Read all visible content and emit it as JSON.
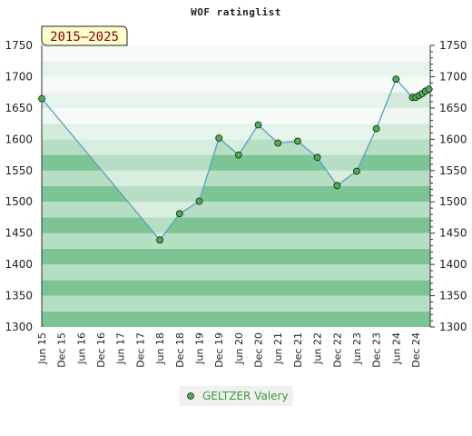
{
  "chart_data": {
    "type": "area",
    "title": "WOF ratinglist",
    "period_label": "2015–2025",
    "x_ticks": [
      "Jun 15",
      "Dec 15",
      "Jun 16",
      "Dec 16",
      "Jun 17",
      "Dec 17",
      "Jun 18",
      "Dec 18",
      "Jun 19",
      "Dec 19",
      "Jun 20",
      "Dec 20",
      "Jun 21",
      "Dec 21",
      "Jun 22",
      "Dec 22",
      "Jun 23",
      "Dec 23",
      "Jun 24",
      "Dec 24"
    ],
    "y_ticks": [
      1300,
      1350,
      1400,
      1450,
      1500,
      1550,
      1600,
      1650,
      1700,
      1750
    ],
    "ylim": [
      1300,
      1750
    ],
    "series": [
      {
        "name": "GELTZER Valery",
        "x": [
          "Jun 15",
          "Jun 18",
          "Dec 18",
          "Jun 19",
          "Dec 19",
          "Jun 20",
          "Dec 20",
          "Jun 21",
          "Dec 21",
          "Jun 22",
          "Dec 22",
          "Jun 23",
          "Dec 23",
          "Jun 24",
          "Nov 24",
          "Dec 24",
          "Jan 25",
          "Feb 25",
          "Mar 25",
          "Apr 25"
        ],
        "values": [
          1665,
          1439,
          1481,
          1501,
          1602,
          1575,
          1623,
          1594,
          1597,
          1571,
          1526,
          1549,
          1617,
          1696,
          1667,
          1667,
          1670,
          1673,
          1677,
          1680
        ]
      }
    ],
    "colors": {
      "line": "#5aa0c0",
      "marker_fill": "#4caf50",
      "band_dark": "#7cc496",
      "band_light": "#b6deC2",
      "band_top_light": "#eef7f1",
      "band_top_dark": "#d2ebdb",
      "badge_bg": "#ffffcc"
    },
    "grid": true,
    "legend_position": "bottom"
  }
}
